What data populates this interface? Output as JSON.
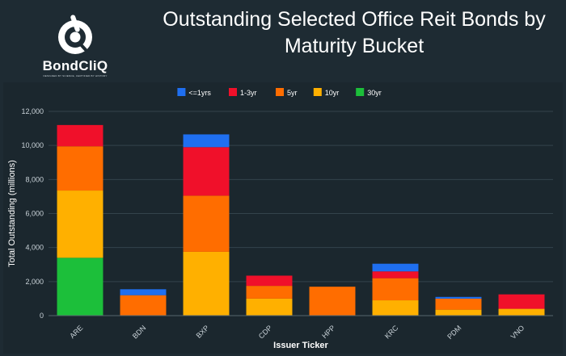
{
  "brand": {
    "name": "BondCliQ",
    "tagline": "DESIGNED BY SCIENCE, CERTIFIED BY HISTORY"
  },
  "colors": {
    "background": "#1e2b33",
    "text": "#ffffff",
    "axis_text": "#c9d2d8",
    "grid": "#34434c"
  },
  "chart_data": {
    "type": "bar",
    "stacked": true,
    "title": "Outstanding Selected Office Reit Bonds by Maturity Bucket",
    "xlabel": "Issuer Ticker",
    "ylabel": "Total Outstanding (millions)",
    "ylim": [
      0,
      12000
    ],
    "yticks": [
      0,
      2000,
      4000,
      6000,
      8000,
      10000,
      12000
    ],
    "ytick_labels": [
      "0",
      "2,000",
      "4,000",
      "6,000",
      "8,000",
      "10,000",
      "12,000"
    ],
    "grid": true,
    "legend_position": "top-center",
    "categories": [
      "ARE",
      "BDN",
      "BXP",
      "CDP",
      "HPP",
      "KRC",
      "PDM",
      "VNO"
    ],
    "series": [
      {
        "name": "30yr",
        "color": "#1cbf3a",
        "values": [
          3400,
          0,
          0,
          0,
          0,
          0,
          0,
          0
        ]
      },
      {
        "name": "10yr",
        "color": "#ffb000",
        "values": [
          3950,
          0,
          3750,
          1000,
          0,
          900,
          350,
          400
        ]
      },
      {
        "name": "5yr",
        "color": "#ff6d00",
        "values": [
          2600,
          1200,
          3300,
          750,
          1700,
          1300,
          650,
          0
        ]
      },
      {
        "name": "1-3yr",
        "color": "#f0102a",
        "values": [
          1250,
          0,
          2850,
          600,
          0,
          400,
          0,
          850
        ]
      },
      {
        "name": "<=1yrs",
        "color": "#1f6ff0",
        "values": [
          0,
          350,
          750,
          0,
          0,
          450,
          100,
          0
        ]
      }
    ],
    "legend_order": [
      "<=1yrs",
      "1-3yr",
      "5yr",
      "10yr",
      "30yr"
    ]
  }
}
